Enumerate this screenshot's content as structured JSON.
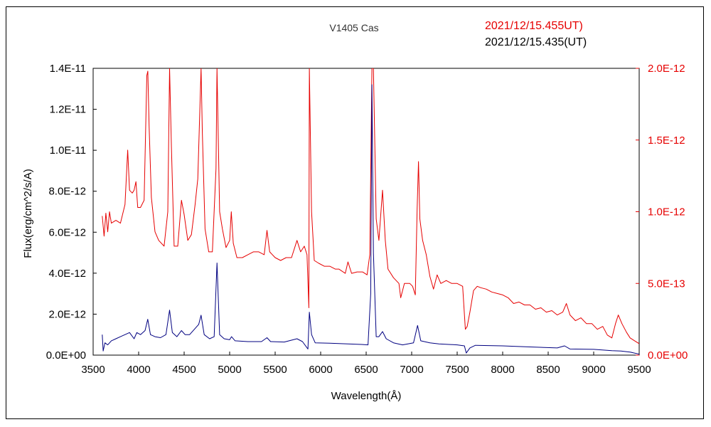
{
  "chart_data": {
    "type": "line",
    "title": "V1405 Cas",
    "xlabel": "Wavelength(Å)",
    "ylabel": "Flux(erg/cm^2/s/A)",
    "xlim": [
      3500,
      9500
    ],
    "ylim_left": [
      0,
      1.4e-11
    ],
    "ylim_right": [
      0,
      2e-12
    ],
    "grid": false,
    "legend_position": "top-right",
    "x_ticks": [
      "3500",
      "4000",
      "4500",
      "5000",
      "5500",
      "6000",
      "6500",
      "7000",
      "7500",
      "8000",
      "8500",
      "9000",
      "9500"
    ],
    "y_ticks_left": [
      "0.0E+00",
      "2.0E-12",
      "4.0E-12",
      "6.0E-12",
      "8.0E-12",
      "1.0E-11",
      "1.2E-11",
      "1.4E-11"
    ],
    "y_ticks_right": [
      "0.0E+00",
      "5.0E-13",
      "1.0E-12",
      "1.5E-12",
      "2.0E-12"
    ],
    "colors": {
      "red": "#e60000",
      "blue": "#000080"
    },
    "series": [
      {
        "name": "2021/12/15.455UT)",
        "axis": "right",
        "color": "#e60000",
        "points": [
          [
            3600,
            9.7e-13
          ],
          [
            3620,
            8.3e-13
          ],
          [
            3640,
            9.9e-13
          ],
          [
            3660,
            8.6e-13
          ],
          [
            3680,
            1e-12
          ],
          [
            3700,
            9.2e-13
          ],
          [
            3750,
            9.4e-13
          ],
          [
            3800,
            9.2e-13
          ],
          [
            3850,
            1.05e-12
          ],
          [
            3880,
            1.43e-12
          ],
          [
            3900,
            1.15e-12
          ],
          [
            3930,
            1.13e-12
          ],
          [
            3950,
            1.15e-12
          ],
          [
            3970,
            1.21e-12
          ],
          [
            3990,
            1.03e-12
          ],
          [
            4020,
            1.03e-12
          ],
          [
            4060,
            1.08e-12
          ],
          [
            4090,
            1.95e-12
          ],
          [
            4101,
            1.98e-12
          ],
          [
            4115,
            1.6e-12
          ],
          [
            4140,
            1.1e-12
          ],
          [
            4180,
            8.6e-13
          ],
          [
            4220,
            8e-13
          ],
          [
            4280,
            7.6e-13
          ],
          [
            4320,
            1e-12
          ],
          [
            4340,
            2e-12
          ],
          [
            4360,
            1.45e-12
          ],
          [
            4390,
            7.6e-13
          ],
          [
            4430,
            7.6e-13
          ],
          [
            4470,
            1.08e-12
          ],
          [
            4500,
            9.8e-13
          ],
          [
            4540,
            8e-13
          ],
          [
            4580,
            8.4e-13
          ],
          [
            4620,
            1.05e-12
          ],
          [
            4650,
            1.23e-12
          ],
          [
            4686,
            2e-12
          ],
          [
            4700,
            1.55e-12
          ],
          [
            4730,
            8.8e-13
          ],
          [
            4770,
            7.2e-13
          ],
          [
            4810,
            7.2e-13
          ],
          [
            4850,
            1.3e-12
          ],
          [
            4861,
            2e-12
          ],
          [
            4890,
            1e-12
          ],
          [
            4920,
            8.8e-13
          ],
          [
            4960,
            7.5e-13
          ],
          [
            5000,
            8e-13
          ],
          [
            5018,
            1e-12
          ],
          [
            5040,
            7.8e-13
          ],
          [
            5080,
            6.8e-13
          ],
          [
            5140,
            6.8e-13
          ],
          [
            5200,
            7e-13
          ],
          [
            5260,
            7.2e-13
          ],
          [
            5320,
            7.2e-13
          ],
          [
            5380,
            7e-13
          ],
          [
            5410,
            8.7e-13
          ],
          [
            5440,
            7.2e-13
          ],
          [
            5500,
            6.8e-13
          ],
          [
            5560,
            6.6e-13
          ],
          [
            5620,
            6.8e-13
          ],
          [
            5680,
            6.8e-13
          ],
          [
            5740,
            8e-13
          ],
          [
            5780,
            7.2e-13
          ],
          [
            5820,
            7.6e-13
          ],
          [
            5850,
            7e-13
          ],
          [
            5870,
            3.3e-13
          ],
          [
            5876,
            2e-12
          ],
          [
            5900,
            1e-12
          ],
          [
            5930,
            6.6e-13
          ],
          [
            5980,
            6.4e-13
          ],
          [
            6040,
            6.2e-13
          ],
          [
            6100,
            6.2e-13
          ],
          [
            6160,
            6e-13
          ],
          [
            6200,
            6e-13
          ],
          [
            6270,
            5.7e-13
          ],
          [
            6300,
            6.5e-13
          ],
          [
            6340,
            5.7e-13
          ],
          [
            6400,
            5.8e-13
          ],
          [
            6460,
            5.8e-13
          ],
          [
            6510,
            5.6e-13
          ],
          [
            6540,
            7e-13
          ],
          [
            6563,
            2e-12
          ],
          [
            6580,
            2e-12
          ],
          [
            6610,
            9.5e-13
          ],
          [
            6640,
            8e-13
          ],
          [
            6680,
            1.15e-12
          ],
          [
            6710,
            8e-13
          ],
          [
            6740,
            6e-13
          ],
          [
            6800,
            5.4e-13
          ],
          [
            6860,
            5e-13
          ],
          [
            6880,
            4e-13
          ],
          [
            6920,
            5e-13
          ],
          [
            6980,
            5e-13
          ],
          [
            7010,
            4.8e-13
          ],
          [
            7040,
            4.2e-13
          ],
          [
            7060,
            1.02e-12
          ],
          [
            7075,
            1.35e-12
          ],
          [
            7090,
            9.5e-13
          ],
          [
            7120,
            8e-13
          ],
          [
            7160,
            7e-13
          ],
          [
            7200,
            5.5e-13
          ],
          [
            7240,
            4.6e-13
          ],
          [
            7280,
            5.6e-13
          ],
          [
            7320,
            5e-13
          ],
          [
            7380,
            5.2e-13
          ],
          [
            7440,
            5e-13
          ],
          [
            7500,
            5e-13
          ],
          [
            7560,
            4.8e-13
          ],
          [
            7590,
            1.8e-13
          ],
          [
            7610,
            2e-13
          ],
          [
            7640,
            3e-13
          ],
          [
            7680,
            4.5e-13
          ],
          [
            7720,
            4.8e-13
          ],
          [
            7760,
            4.7e-13
          ],
          [
            7820,
            4.6e-13
          ],
          [
            7880,
            4.4e-13
          ],
          [
            7940,
            4.3e-13
          ],
          [
            8000,
            4.2e-13
          ],
          [
            8060,
            4e-13
          ],
          [
            8120,
            3.6e-13
          ],
          [
            8180,
            3.7e-13
          ],
          [
            8240,
            3.5e-13
          ],
          [
            8300,
            3.5e-13
          ],
          [
            8360,
            3.2e-13
          ],
          [
            8420,
            3.3e-13
          ],
          [
            8480,
            3e-13
          ],
          [
            8540,
            3.1e-13
          ],
          [
            8600,
            2.8e-13
          ],
          [
            8660,
            3e-13
          ],
          [
            8700,
            3.6e-13
          ],
          [
            8740,
            2.8e-13
          ],
          [
            8800,
            2.4e-13
          ],
          [
            8860,
            2.6e-13
          ],
          [
            8920,
            2.2e-13
          ],
          [
            8980,
            2.2e-13
          ],
          [
            9040,
            1.8e-13
          ],
          [
            9100,
            2e-13
          ],
          [
            9150,
            1.4e-13
          ],
          [
            9200,
            1.2e-13
          ],
          [
            9240,
            2.2e-13
          ],
          [
            9270,
            2.8e-13
          ],
          [
            9310,
            2.2e-13
          ],
          [
            9360,
            1.6e-13
          ],
          [
            9400,
            1.2e-13
          ],
          [
            9450,
            1e-13
          ],
          [
            9500,
            8e-14
          ]
        ]
      },
      {
        "name": "2021/12/15.435(UT)",
        "axis": "left",
        "color": "#000080",
        "points": [
          [
            3600,
            1e-12
          ],
          [
            3610,
            2e-13
          ],
          [
            3630,
            6e-13
          ],
          [
            3660,
            5e-13
          ],
          [
            3700,
            7e-13
          ],
          [
            3750,
            8e-13
          ],
          [
            3800,
            9e-13
          ],
          [
            3850,
            1e-12
          ],
          [
            3900,
            1.1e-12
          ],
          [
            3950,
            8e-13
          ],
          [
            3980,
            1.1e-12
          ],
          [
            4020,
            1e-12
          ],
          [
            4070,
            1.2e-12
          ],
          [
            4100,
            1.75e-12
          ],
          [
            4130,
            1e-12
          ],
          [
            4180,
            9e-13
          ],
          [
            4240,
            8.5e-13
          ],
          [
            4300,
            1e-12
          ],
          [
            4340,
            2.2e-12
          ],
          [
            4370,
            1.1e-12
          ],
          [
            4420,
            9e-13
          ],
          [
            4470,
            1.2e-12
          ],
          [
            4510,
            1e-12
          ],
          [
            4560,
            1e-12
          ],
          [
            4620,
            1.3e-12
          ],
          [
            4660,
            1.5e-12
          ],
          [
            4686,
            1.95e-12
          ],
          [
            4720,
            1e-12
          ],
          [
            4780,
            8e-13
          ],
          [
            4830,
            9e-13
          ],
          [
            4861,
            4.5e-12
          ],
          [
            4890,
            1e-12
          ],
          [
            4940,
            8e-13
          ],
          [
            5000,
            7.5e-13
          ],
          [
            5020,
            9e-13
          ],
          [
            5060,
            7e-13
          ],
          [
            5200,
            6.6e-13
          ],
          [
            5350,
            6.6e-13
          ],
          [
            5410,
            8.5e-13
          ],
          [
            5450,
            6.6e-13
          ],
          [
            5600,
            6.4e-13
          ],
          [
            5740,
            8e-13
          ],
          [
            5800,
            6.6e-13
          ],
          [
            5860,
            3e-13
          ],
          [
            5876,
            2.1e-12
          ],
          [
            5900,
            1e-12
          ],
          [
            5940,
            6e-13
          ],
          [
            6100,
            5.8e-13
          ],
          [
            6300,
            5.5e-13
          ],
          [
            6450,
            5.2e-13
          ],
          [
            6520,
            5e-13
          ],
          [
            6550,
            3e-12
          ],
          [
            6563,
            1.32e-11
          ],
          [
            6580,
            5e-12
          ],
          [
            6610,
            9e-13
          ],
          [
            6640,
            9e-13
          ],
          [
            6680,
            1.15e-12
          ],
          [
            6720,
            8e-13
          ],
          [
            6800,
            6e-13
          ],
          [
            6900,
            5e-13
          ],
          [
            7020,
            6e-13
          ],
          [
            7065,
            1.45e-12
          ],
          [
            7100,
            7e-13
          ],
          [
            7200,
            6e-13
          ],
          [
            7300,
            5.5e-13
          ],
          [
            7500,
            5e-13
          ],
          [
            7580,
            4.5e-13
          ],
          [
            7600,
            1e-13
          ],
          [
            7640,
            3.5e-13
          ],
          [
            7700,
            4.8e-13
          ],
          [
            8000,
            4.5e-13
          ],
          [
            8300,
            4e-13
          ],
          [
            8600,
            3.5e-13
          ],
          [
            8680,
            4.5e-13
          ],
          [
            8740,
            3e-13
          ],
          [
            9000,
            2.8e-13
          ],
          [
            9200,
            2.2e-13
          ],
          [
            9300,
            2e-13
          ],
          [
            9400,
            1.5e-13
          ],
          [
            9500,
            5e-14
          ]
        ]
      }
    ]
  }
}
